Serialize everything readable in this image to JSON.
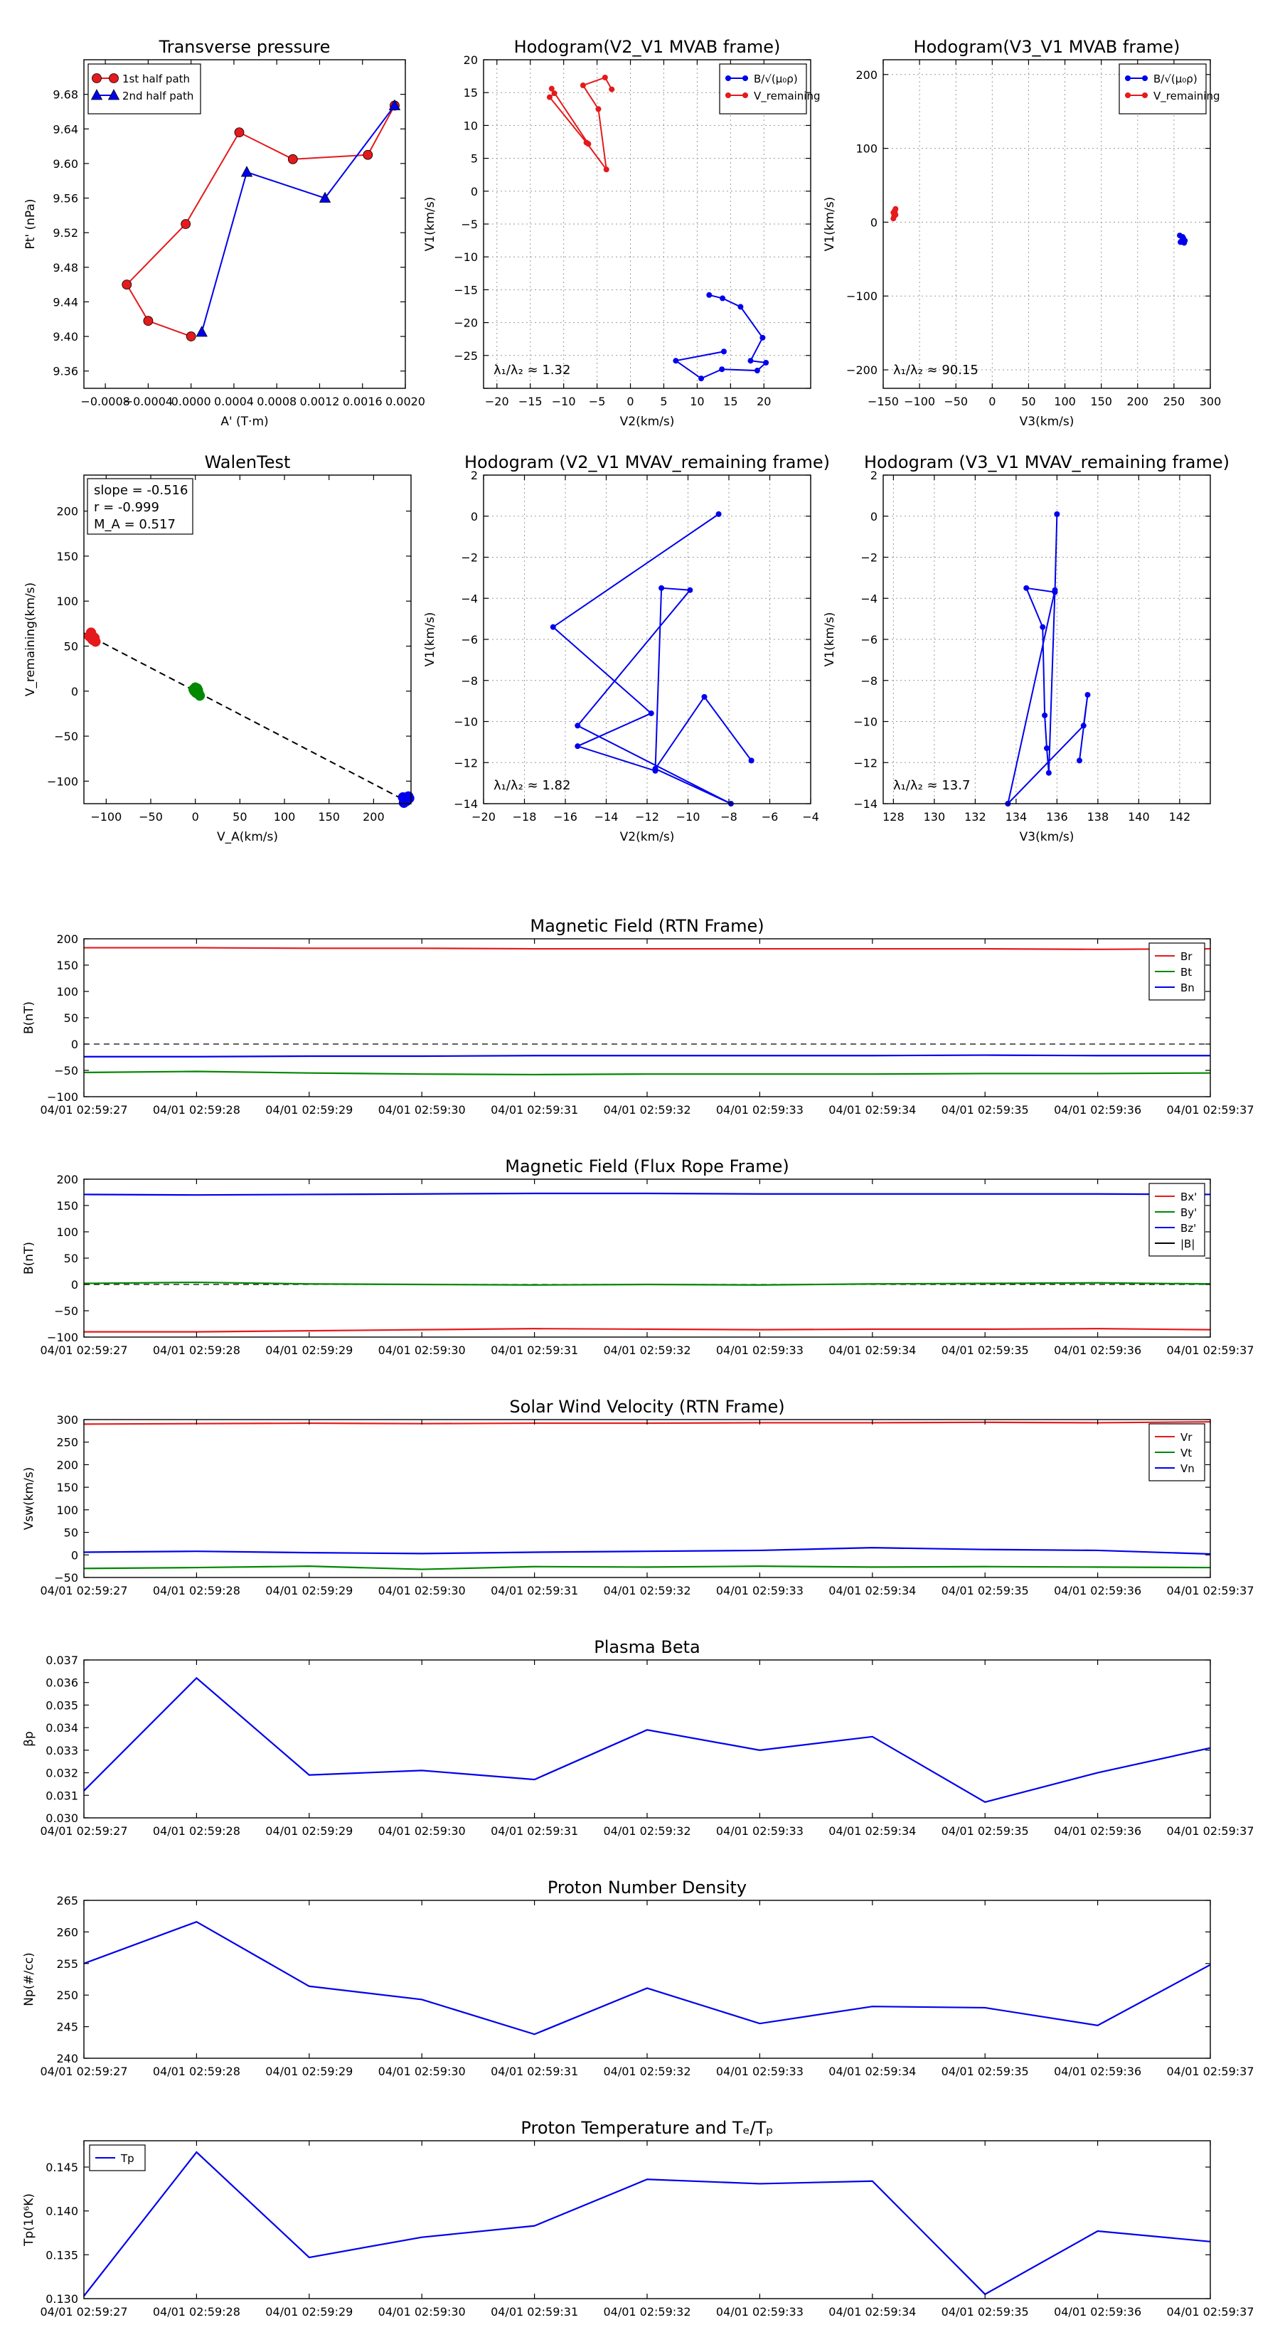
{
  "figure": {
    "background": "#ffffff"
  },
  "colors": {
    "red": "#e41a1c",
    "blue": "#0000ee",
    "green": "#008800",
    "black": "#000000",
    "grid": "#999999"
  },
  "chart_data": [
    {
      "id": "transverse_pressure",
      "type": "line",
      "title": "Transverse pressure",
      "xlabel": "A' (T·m)",
      "ylabel": "Pt' (nPa)",
      "xlim": [
        -0.001,
        0.002
      ],
      "ylim": [
        9.34,
        9.72
      ],
      "xticks": [
        -0.0008,
        -0.0004,
        0.0,
        0.0004,
        0.0008,
        0.0012,
        0.0016,
        0.002
      ],
      "xtick_labels": [
        "−0.0008",
        "−0.0004",
        "0.0000",
        "0.0004",
        "0.0008",
        "0.0012",
        "0.0016",
        "0.0020"
      ],
      "yticks": [
        9.36,
        9.4,
        9.44,
        9.48,
        9.52,
        9.56,
        9.6,
        9.64,
        9.68
      ],
      "ytick_labels": [
        "9.36",
        "9.40",
        "9.44",
        "9.48",
        "9.52",
        "9.56",
        "9.60",
        "9.64",
        "9.68"
      ],
      "grid": false,
      "legend": "top-left",
      "series": [
        {
          "name": "1st half path",
          "color": "#e41a1c",
          "marker": "circle",
          "x": [
            0.0019,
            0.00165,
            0.00095,
            0.00045,
            -5e-05,
            -0.0006,
            -0.0004,
            0.0
          ],
          "y": [
            9.667,
            9.61,
            9.605,
            9.636,
            9.53,
            9.46,
            9.418,
            9.4
          ]
        },
        {
          "name": "2nd half path",
          "color": "#0000ee",
          "marker": "triangle",
          "x": [
            0.0001,
            0.00052,
            0.00125,
            0.0019
          ],
          "y": [
            9.405,
            9.59,
            9.56,
            9.667
          ]
        }
      ]
    },
    {
      "id": "hodogram_v2_v1_mvab",
      "type": "line",
      "title": "Hodogram(V2_V1 MVAB frame)",
      "xlabel": "V2(km/s)",
      "ylabel": "V1(km/s)",
      "xlim": [
        -22,
        27
      ],
      "ylim": [
        -30,
        20
      ],
      "xticks": [
        -20,
        -15,
        -10,
        -5,
        0,
        5,
        10,
        15,
        20
      ],
      "yticks": [
        -30,
        -25,
        -20,
        -15,
        -10,
        -5,
        0,
        5,
        10,
        15,
        20
      ],
      "xtick_labels": [
        "−20",
        "−15",
        "−10",
        "−5",
        "0",
        "5",
        "10",
        "15",
        "20"
      ],
      "ytick_labels": [
        "",
        "−25",
        "−20",
        "−15",
        "−10",
        "−5",
        "0",
        "5",
        "10",
        "15",
        "20"
      ],
      "grid": true,
      "legend": "top-right",
      "annotation": "λ₁/λ₂ ≈ 1.32",
      "series": [
        {
          "name": "B/√(μ₀ρ)",
          "color": "#0000ee",
          "marker": "dot",
          "x": [
            11.8,
            13.8,
            16.5,
            19.8,
            18,
            20.3,
            19,
            13.7,
            10.6,
            6.8,
            14
          ],
          "y": [
            -15.8,
            -16.3,
            -17.6,
            -22.3,
            -25.8,
            -26.1,
            -27.3,
            -27.1,
            -28.5,
            -25.8,
            -24.4
          ]
        },
        {
          "name": "V_remaining",
          "color": "#e41a1c",
          "marker": "dot",
          "x": [
            -2.8,
            -3.8,
            -7.1,
            -4.8,
            -3.6,
            -6.6,
            -12.1,
            -11.4,
            -11.8,
            -6.3
          ],
          "y": [
            15.5,
            17.3,
            16.1,
            12.5,
            3.3,
            7.4,
            14.3,
            14.9,
            15.6,
            7.2
          ]
        }
      ]
    },
    {
      "id": "hodogram_v3_v1_mvab",
      "type": "line",
      "title": "Hodogram(V3_V1 MVAB frame)",
      "xlabel": "V3(km/s)",
      "ylabel": "V1(km/s)",
      "xlim": [
        -150,
        300
      ],
      "ylim": [
        -225,
        220
      ],
      "xticks": [
        -150,
        -100,
        -50,
        0,
        50,
        100,
        150,
        200,
        250,
        300
      ],
      "yticks": [
        -200,
        -100,
        0,
        100,
        200
      ],
      "xtick_labels": [
        "−150",
        "−100",
        "−50",
        "0",
        "50",
        "100",
        "150",
        "200",
        "250",
        "300"
      ],
      "ytick_labels": [
        "−200",
        "−100",
        "0",
        "100",
        "200"
      ],
      "grid": true,
      "legend": "top-right",
      "annotation": "λ₁/λ₂ ≈ 90.15",
      "series": [
        {
          "name": "B/√(μ₀ρ)",
          "color": "#0000ee",
          "marker": "dot",
          "x": [
            258,
            262,
            263,
            265,
            260,
            264,
            259,
            262
          ],
          "y": [
            -18,
            -20,
            -22,
            -25,
            -26,
            -28,
            -27,
            -23
          ]
        },
        {
          "name": "V_remaining",
          "color": "#e41a1c",
          "marker": "dot",
          "x": [
            -136,
            -134,
            -133,
            -135,
            -136,
            -134,
            -133
          ],
          "y": [
            13,
            16,
            10,
            8,
            5,
            14,
            18
          ]
        }
      ]
    },
    {
      "id": "walen_test",
      "type": "scatter",
      "title": "WalenTest",
      "xlabel": "V_A(km/s)",
      "ylabel": "V_remaining(km/s)",
      "xlim": [
        -125,
        242
      ],
      "ylim": [
        -125,
        240
      ],
      "xticks": [
        -100,
        -50,
        0,
        50,
        100,
        150,
        200
      ],
      "yticks": [
        -100,
        -50,
        0,
        50,
        100,
        150,
        200
      ],
      "xtick_labels": [
        "−100",
        "−50",
        "0",
        "50",
        "100",
        "150",
        "200"
      ],
      "ytick_labels": [
        "−100",
        "−50",
        "0",
        "50",
        "100",
        "150",
        "200"
      ],
      "grid": false,
      "stats": [
        "slope = -0.516",
        "r = -0.999",
        "M_A = 0.517"
      ],
      "fit_line": {
        "slope": -0.516,
        "intercept": 0,
        "color": "#000000"
      },
      "series": [
        {
          "name": "red",
          "color": "#e41a1c",
          "x": [
            -118,
            -116,
            -114,
            -117,
            -112,
            -115,
            -119,
            -113
          ],
          "y": [
            62,
            58,
            60,
            65,
            55,
            57,
            61,
            59
          ]
        },
        {
          "name": "green",
          "color": "#008800",
          "x": [
            -2,
            1,
            3,
            0,
            5,
            -1,
            4,
            2
          ],
          "y": [
            2,
            -2,
            1,
            4,
            -5,
            0,
            -3,
            3
          ]
        },
        {
          "name": "blue",
          "color": "#0000ee",
          "x": [
            233,
            236,
            238,
            235,
            240,
            237,
            234,
            239
          ],
          "y": [
            -118,
            -121,
            -120,
            -123,
            -119,
            -122,
            -124,
            -117
          ]
        }
      ]
    },
    {
      "id": "hodogram_v2_v1_mvav",
      "type": "line",
      "title": "Hodogram (V2_V1 MVAV_remaining frame)",
      "xlabel": "V2(km/s)",
      "ylabel": "V1(km/s)",
      "xlim": [
        -20,
        -4
      ],
      "ylim": [
        -14,
        2
      ],
      "xticks": [
        -20,
        -18,
        -16,
        -14,
        -12,
        -10,
        -8,
        -6,
        -4
      ],
      "yticks": [
        -14,
        -12,
        -10,
        -8,
        -6,
        -4,
        -2,
        0,
        2
      ],
      "xtick_labels": [
        "−20",
        "−18",
        "−16",
        "−14",
        "−12",
        "−10",
        "−8",
        "−6",
        "−4"
      ],
      "ytick_labels": [
        "−14",
        "−12",
        "−10",
        "−8",
        "−6",
        "−4",
        "−2",
        "0",
        "2"
      ],
      "grid": true,
      "annotation": "λ₁/λ₂ ≈ 1.82",
      "series": [
        {
          "name": "V",
          "color": "#0000ee",
          "marker": "dot",
          "x": [
            -8.5,
            -16.6,
            -11.8,
            -15.4,
            -11.6,
            -11.3,
            -9.9,
            -15.4,
            -7.9,
            -11.6,
            -9.2,
            -6.9
          ],
          "y": [
            0.1,
            -5.4,
            -9.6,
            -11.2,
            -12.4,
            -3.5,
            -3.6,
            -10.2,
            -14.0,
            -12.3,
            -8.8,
            -11.9
          ]
        }
      ]
    },
    {
      "id": "hodogram_v3_v1_mvav",
      "type": "line",
      "title": "Hodogram (V3_V1 MVAV_remaining frame)",
      "xlabel": "V3(km/s)",
      "ylabel": "V1(km/s)",
      "xlim": [
        127.5,
        143.5
      ],
      "ylim": [
        -14,
        2
      ],
      "xticks": [
        128,
        130,
        132,
        134,
        136,
        138,
        140,
        142
      ],
      "yticks": [
        -14,
        -12,
        -10,
        -8,
        -6,
        -4,
        -2,
        0,
        2
      ],
      "xtick_labels": [
        "128",
        "130",
        "132",
        "134",
        "136",
        "138",
        "140",
        "142"
      ],
      "ytick_labels": [
        "−14",
        "−12",
        "−10",
        "−8",
        "−6",
        "−4",
        "−2",
        "0",
        "2"
      ],
      "grid": true,
      "annotation": "λ₁/λ₂ ≈ 13.7",
      "series": [
        {
          "name": "V",
          "color": "#0000ee",
          "marker": "dot",
          "x": [
            136.0,
            135.9,
            134.5,
            135.3,
            135.4,
            135.5,
            135.6,
            135.9,
            133.6,
            137.3,
            137.5,
            137.1
          ],
          "y": [
            0.1,
            -3.7,
            -3.5,
            -5.4,
            -9.7,
            -11.3,
            -12.5,
            -3.6,
            -14.0,
            -10.2,
            -8.7,
            -11.9
          ]
        }
      ]
    },
    {
      "id": "b_rtn",
      "type": "line",
      "title": "Magnetic Field (RTN Frame)",
      "ylabel": "B(nT)",
      "ylim": [
        -100,
        200
      ],
      "yticks": [
        -100,
        -50,
        0,
        50,
        100,
        150,
        200
      ],
      "ytick_labels": [
        "−100",
        "−50",
        "0",
        "50",
        "100",
        "150",
        "200"
      ],
      "x": [
        "04/01 02:59:27",
        "04/01 02:59:28",
        "04/01 02:59:29",
        "04/01 02:59:30",
        "04/01 02:59:31",
        "04/01 02:59:32",
        "04/01 02:59:33",
        "04/01 02:59:34",
        "04/01 02:59:35",
        "04/01 02:59:36",
        "04/01 02:59:37"
      ],
      "zero_line": true,
      "legend": "top-right",
      "series": [
        {
          "name": "Br",
          "color": "#e41a1c",
          "values": [
            183,
            183,
            182,
            182,
            181,
            181,
            181,
            181,
            181,
            180,
            181
          ]
        },
        {
          "name": "Bt",
          "color": "#008800",
          "values": [
            -54,
            -52,
            -55,
            -57,
            -58,
            -57,
            -57,
            -57,
            -56,
            -56,
            -55
          ]
        },
        {
          "name": "Bn",
          "color": "#0000ee",
          "values": [
            -24,
            -24,
            -23,
            -23,
            -22,
            -22,
            -22,
            -22,
            -21,
            -22,
            -22
          ]
        }
      ]
    },
    {
      "id": "b_fluxrope",
      "type": "line",
      "title": "Magnetic Field (Flux Rope Frame)",
      "ylabel": "B(nT)",
      "ylim": [
        -100,
        200
      ],
      "yticks": [
        -100,
        -50,
        0,
        50,
        100,
        150,
        200
      ],
      "ytick_labels": [
        "−100",
        "−50",
        "0",
        "50",
        "100",
        "150",
        "200"
      ],
      "x": [
        "04/01 02:59:27",
        "04/01 02:59:28",
        "04/01 02:59:29",
        "04/01 02:59:30",
        "04/01 02:59:31",
        "04/01 02:59:32",
        "04/01 02:59:33",
        "04/01 02:59:34",
        "04/01 02:59:35",
        "04/01 02:59:36",
        "04/01 02:59:37"
      ],
      "zero_line": true,
      "legend": "top-right",
      "series": [
        {
          "name": "Bx'",
          "color": "#e41a1c",
          "values": [
            -90,
            -90,
            -88,
            -86,
            -84,
            -85,
            -86,
            -85,
            -85,
            -84,
            -86
          ]
        },
        {
          "name": "By'",
          "color": "#008800",
          "values": [
            2,
            4,
            1,
            0,
            -1,
            0,
            -1,
            1,
            2,
            3,
            1
          ]
        },
        {
          "name": "Bz'",
          "color": "#0000ee",
          "values": [
            171,
            170,
            171,
            172,
            173,
            173,
            172,
            172,
            172,
            172,
            171
          ]
        },
        {
          "name": "|B|",
          "color": "#000000",
          "values": [
            null,
            null,
            null,
            null,
            null,
            null,
            null,
            null,
            null,
            null,
            null
          ]
        }
      ]
    },
    {
      "id": "vsw_rtn",
      "type": "line",
      "title": "Solar Wind Velocity (RTN Frame)",
      "ylabel": "Vsw(km/s)",
      "ylim": [
        -50,
        300
      ],
      "yticks": [
        -50,
        0,
        50,
        100,
        150,
        200,
        250,
        300
      ],
      "ytick_labels": [
        "−50",
        "0",
        "50",
        "100",
        "150",
        "200",
        "250",
        "300"
      ],
      "x": [
        "04/01 02:59:27",
        "04/01 02:59:28",
        "04/01 02:59:29",
        "04/01 02:59:30",
        "04/01 02:59:31",
        "04/01 02:59:32",
        "04/01 02:59:33",
        "04/01 02:59:34",
        "04/01 02:59:35",
        "04/01 02:59:36",
        "04/01 02:59:37"
      ],
      "zero_line": false,
      "legend": "top-right",
      "series": [
        {
          "name": "Vr",
          "color": "#e41a1c",
          "values": [
            290,
            291,
            292,
            291,
            292,
            292,
            293,
            293,
            294,
            293,
            295
          ]
        },
        {
          "name": "Vt",
          "color": "#008800",
          "values": [
            -30,
            -28,
            -25,
            -32,
            -26,
            -27,
            -25,
            -27,
            -26,
            -27,
            -28
          ]
        },
        {
          "name": "Vn",
          "color": "#0000ee",
          "values": [
            6,
            8,
            5,
            3,
            6,
            8,
            10,
            16,
            12,
            10,
            2
          ]
        }
      ]
    },
    {
      "id": "plasma_beta",
      "type": "line",
      "title": "Plasma Beta",
      "ylabel": "βp",
      "ylim": [
        0.03,
        0.037
      ],
      "yticks": [
        0.03,
        0.031,
        0.032,
        0.033,
        0.034,
        0.035,
        0.036,
        0.037
      ],
      "ytick_labels": [
        "0.030",
        "0.031",
        "0.032",
        "0.033",
        "0.034",
        "0.035",
        "0.036",
        "0.037"
      ],
      "x": [
        "04/01 02:59:27",
        "04/01 02:59:28",
        "04/01 02:59:29",
        "04/01 02:59:30",
        "04/01 02:59:31",
        "04/01 02:59:32",
        "04/01 02:59:33",
        "04/01 02:59:34",
        "04/01 02:59:35",
        "04/01 02:59:36",
        "04/01 02:59:37"
      ],
      "series": [
        {
          "name": "beta",
          "color": "#0000ee",
          "values": [
            0.0312,
            0.0362,
            0.0319,
            0.0321,
            0.0317,
            0.0339,
            0.033,
            0.0336,
            0.0307,
            0.032,
            0.0331
          ]
        }
      ]
    },
    {
      "id": "proton_density",
      "type": "line",
      "title": "Proton Number Density",
      "ylabel": "Np(#/cc)",
      "ylim": [
        240,
        265
      ],
      "yticks": [
        240,
        245,
        250,
        255,
        260,
        265
      ],
      "ytick_labels": [
        "240",
        "245",
        "250",
        "255",
        "260",
        "265"
      ],
      "x": [
        "04/01 02:59:27",
        "04/01 02:59:28",
        "04/01 02:59:29",
        "04/01 02:59:30",
        "04/01 02:59:31",
        "04/01 02:59:32",
        "04/01 02:59:33",
        "04/01 02:59:34",
        "04/01 02:59:35",
        "04/01 02:59:36",
        "04/01 02:59:37"
      ],
      "series": [
        {
          "name": "Np",
          "color": "#0000ee",
          "values": [
            255.0,
            261.6,
            251.4,
            249.3,
            243.8,
            251.1,
            245.5,
            248.2,
            248.0,
            245.2,
            254.8
          ]
        }
      ]
    },
    {
      "id": "proton_temperature",
      "type": "line",
      "title": "Proton Temperature and Tₑ/Tₚ",
      "ylabel": "Tp(10⁶K)",
      "ylim": [
        0.13,
        0.148
      ],
      "yticks": [
        0.13,
        0.135,
        0.14,
        0.145
      ],
      "ytick_labels": [
        "0.130",
        "0.135",
        "0.140",
        "0.145"
      ],
      "x": [
        "04/01 02:59:27",
        "04/01 02:59:28",
        "04/01 02:59:29",
        "04/01 02:59:30",
        "04/01 02:59:31",
        "04/01 02:59:32",
        "04/01 02:59:33",
        "04/01 02:59:34",
        "04/01 02:59:35",
        "04/01 02:59:36",
        "04/01 02:59:37"
      ],
      "legend": "top-left",
      "series": [
        {
          "name": "Tp",
          "color": "#0000ee",
          "values": [
            0.1303,
            0.1467,
            0.1347,
            0.137,
            0.1383,
            0.1436,
            0.1431,
            0.1434,
            0.1305,
            0.1377,
            0.1365
          ]
        }
      ]
    }
  ]
}
